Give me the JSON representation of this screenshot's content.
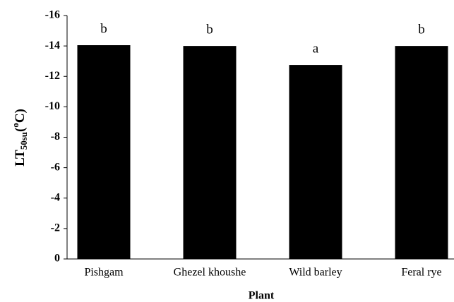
{
  "chart_data": {
    "type": "bar",
    "x_label": "Plant",
    "y_label": [
      "LT",
      "50su",
      "(",
      "o",
      "C)"
    ],
    "categories": [
      "Pishgam",
      "Ghezel khoushe",
      "Wild barley",
      "Feral rye"
    ],
    "values": [
      -14.05,
      -14,
      -12.75,
      -14
    ],
    "annotations": [
      "b",
      "b",
      "a",
      "b"
    ],
    "color": "#000000",
    "ylim": [
      0,
      -16
    ],
    "yticks": [
      0,
      -2,
      -4,
      -6,
      -8,
      -10,
      -12,
      -14,
      -16
    ],
    "grid": false
  }
}
